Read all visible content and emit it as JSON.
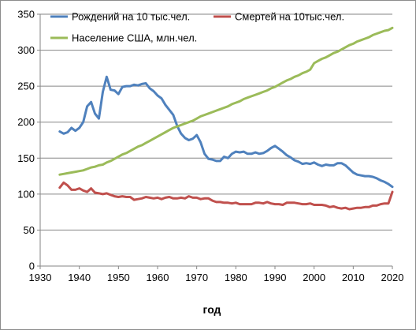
{
  "chart_data": {
    "type": "line",
    "xlabel": "год",
    "ylabel": "",
    "xlim": [
      1930,
      2020
    ],
    "ylim": [
      0,
      350
    ],
    "x_ticks": [
      1930,
      1940,
      1950,
      1960,
      1970,
      1980,
      1990,
      2000,
      2010,
      2020
    ],
    "y_ticks": [
      0,
      50,
      100,
      150,
      200,
      250,
      300,
      350
    ],
    "grid": "horizontal",
    "legend_position": "top-left",
    "series": [
      {
        "name": "Рождений на 10 тыс.чел.",
        "color": "#4f81bd",
        "points": [
          [
            1935,
            187
          ],
          [
            1936,
            184
          ],
          [
            1937,
            186
          ],
          [
            1938,
            192
          ],
          [
            1939,
            188
          ],
          [
            1940,
            192
          ],
          [
            1941,
            200
          ],
          [
            1942,
            222
          ],
          [
            1943,
            228
          ],
          [
            1944,
            212
          ],
          [
            1945,
            205
          ],
          [
            1946,
            242
          ],
          [
            1947,
            263
          ],
          [
            1948,
            245
          ],
          [
            1949,
            244
          ],
          [
            1950,
            239
          ],
          [
            1951,
            249
          ],
          [
            1952,
            250
          ],
          [
            1953,
            250
          ],
          [
            1954,
            252
          ],
          [
            1955,
            251
          ],
          [
            1956,
            253
          ],
          [
            1957,
            254
          ],
          [
            1958,
            247
          ],
          [
            1959,
            243
          ],
          [
            1960,
            237
          ],
          [
            1961,
            233
          ],
          [
            1962,
            224
          ],
          [
            1963,
            217
          ],
          [
            1964,
            210
          ],
          [
            1965,
            195
          ],
          [
            1966,
            184
          ],
          [
            1967,
            178
          ],
          [
            1968,
            175
          ],
          [
            1969,
            177
          ],
          [
            1970,
            182
          ],
          [
            1971,
            172
          ],
          [
            1972,
            156
          ],
          [
            1973,
            149
          ],
          [
            1974,
            148
          ],
          [
            1975,
            146
          ],
          [
            1976,
            146
          ],
          [
            1977,
            152
          ],
          [
            1978,
            150
          ],
          [
            1979,
            156
          ],
          [
            1980,
            159
          ],
          [
            1981,
            158
          ],
          [
            1982,
            159
          ],
          [
            1983,
            156
          ],
          [
            1984,
            156
          ],
          [
            1985,
            158
          ],
          [
            1986,
            156
          ],
          [
            1987,
            157
          ],
          [
            1988,
            160
          ],
          [
            1989,
            164
          ],
          [
            1990,
            167
          ],
          [
            1991,
            163
          ],
          [
            1992,
            159
          ],
          [
            1993,
            154
          ],
          [
            1994,
            151
          ],
          [
            1995,
            147
          ],
          [
            1996,
            145
          ],
          [
            1997,
            142
          ],
          [
            1998,
            143
          ],
          [
            1999,
            142
          ],
          [
            2000,
            144
          ],
          [
            2001,
            141
          ],
          [
            2002,
            139
          ],
          [
            2003,
            141
          ],
          [
            2004,
            140
          ],
          [
            2005,
            140
          ],
          [
            2006,
            143
          ],
          [
            2007,
            143
          ],
          [
            2008,
            140
          ],
          [
            2009,
            135
          ],
          [
            2010,
            130
          ],
          [
            2011,
            127
          ],
          [
            2012,
            126
          ],
          [
            2013,
            125
          ],
          [
            2014,
            125
          ],
          [
            2015,
            124
          ],
          [
            2016,
            122
          ],
          [
            2017,
            119
          ],
          [
            2018,
            117
          ],
          [
            2019,
            114
          ],
          [
            2020,
            110
          ]
        ]
      },
      {
        "name": "Смертей на 10тыс.чел.",
        "color": "#c0504d",
        "points": [
          [
            1935,
            109
          ],
          [
            1936,
            116
          ],
          [
            1937,
            112
          ],
          [
            1938,
            106
          ],
          [
            1939,
            106
          ],
          [
            1940,
            108
          ],
          [
            1941,
            105
          ],
          [
            1942,
            103
          ],
          [
            1943,
            108
          ],
          [
            1944,
            102
          ],
          [
            1945,
            101
          ],
          [
            1946,
            100
          ],
          [
            1947,
            101
          ],
          [
            1948,
            99
          ],
          [
            1949,
            97
          ],
          [
            1950,
            96
          ],
          [
            1951,
            97
          ],
          [
            1952,
            96
          ],
          [
            1953,
            96
          ],
          [
            1954,
            92
          ],
          [
            1955,
            93
          ],
          [
            1956,
            94
          ],
          [
            1957,
            96
          ],
          [
            1958,
            95
          ],
          [
            1959,
            94
          ],
          [
            1960,
            95
          ],
          [
            1961,
            93
          ],
          [
            1962,
            95
          ],
          [
            1963,
            96
          ],
          [
            1964,
            94
          ],
          [
            1965,
            94
          ],
          [
            1966,
            95
          ],
          [
            1967,
            94
          ],
          [
            1968,
            97
          ],
          [
            1969,
            95
          ],
          [
            1970,
            95
          ],
          [
            1971,
            93
          ],
          [
            1972,
            94
          ],
          [
            1973,
            94
          ],
          [
            1974,
            91
          ],
          [
            1975,
            89
          ],
          [
            1976,
            89
          ],
          [
            1977,
            88
          ],
          [
            1978,
            88
          ],
          [
            1979,
            87
          ],
          [
            1980,
            88
          ],
          [
            1981,
            86
          ],
          [
            1982,
            86
          ],
          [
            1983,
            86
          ],
          [
            1984,
            86
          ],
          [
            1985,
            88
          ],
          [
            1986,
            88
          ],
          [
            1987,
            87
          ],
          [
            1988,
            89
          ],
          [
            1989,
            87
          ],
          [
            1990,
            86
          ],
          [
            1991,
            86
          ],
          [
            1992,
            85
          ],
          [
            1993,
            88
          ],
          [
            1994,
            88
          ],
          [
            1995,
            88
          ],
          [
            1996,
            87
          ],
          [
            1997,
            86
          ],
          [
            1998,
            86
          ],
          [
            1999,
            87
          ],
          [
            2000,
            85
          ],
          [
            2001,
            85
          ],
          [
            2002,
            85
          ],
          [
            2003,
            84
          ],
          [
            2004,
            82
          ],
          [
            2005,
            83
          ],
          [
            2006,
            81
          ],
          [
            2007,
            80
          ],
          [
            2008,
            81
          ],
          [
            2009,
            79
          ],
          [
            2010,
            80
          ],
          [
            2011,
            81
          ],
          [
            2012,
            81
          ],
          [
            2013,
            82
          ],
          [
            2014,
            82
          ],
          [
            2015,
            84
          ],
          [
            2016,
            84
          ],
          [
            2017,
            86
          ],
          [
            2018,
            87
          ],
          [
            2019,
            87
          ],
          [
            2020,
            103
          ]
        ]
      },
      {
        "name": "Население США, млн.чел.",
        "color": "#9bbb59",
        "points": [
          [
            1935,
            127
          ],
          [
            1936,
            128
          ],
          [
            1937,
            129
          ],
          [
            1938,
            130
          ],
          [
            1939,
            131
          ],
          [
            1940,
            132
          ],
          [
            1941,
            133
          ],
          [
            1942,
            135
          ],
          [
            1943,
            137
          ],
          [
            1944,
            138
          ],
          [
            1945,
            140
          ],
          [
            1946,
            141
          ],
          [
            1947,
            144
          ],
          [
            1948,
            146
          ],
          [
            1949,
            149
          ],
          [
            1950,
            152
          ],
          [
            1951,
            155
          ],
          [
            1952,
            157
          ],
          [
            1953,
            160
          ],
          [
            1954,
            163
          ],
          [
            1955,
            166
          ],
          [
            1956,
            168
          ],
          [
            1957,
            171
          ],
          [
            1958,
            174
          ],
          [
            1959,
            177
          ],
          [
            1960,
            180
          ],
          [
            1961,
            183
          ],
          [
            1962,
            186
          ],
          [
            1963,
            189
          ],
          [
            1964,
            192
          ],
          [
            1965,
            194
          ],
          [
            1966,
            196
          ],
          [
            1967,
            198
          ],
          [
            1968,
            200
          ],
          [
            1969,
            202
          ],
          [
            1970,
            205
          ],
          [
            1971,
            208
          ],
          [
            1972,
            210
          ],
          [
            1973,
            212
          ],
          [
            1974,
            214
          ],
          [
            1975,
            216
          ],
          [
            1976,
            218
          ],
          [
            1977,
            220
          ],
          [
            1978,
            222
          ],
          [
            1979,
            225
          ],
          [
            1980,
            227
          ],
          [
            1981,
            229
          ],
          [
            1982,
            232
          ],
          [
            1983,
            234
          ],
          [
            1984,
            236
          ],
          [
            1985,
            238
          ],
          [
            1986,
            240
          ],
          [
            1987,
            242
          ],
          [
            1988,
            244
          ],
          [
            1989,
            247
          ],
          [
            1990,
            249
          ],
          [
            1991,
            252
          ],
          [
            1992,
            255
          ],
          [
            1993,
            258
          ],
          [
            1994,
            260
          ],
          [
            1995,
            263
          ],
          [
            1996,
            265
          ],
          [
            1997,
            268
          ],
          [
            1998,
            270
          ],
          [
            1999,
            273
          ],
          [
            2000,
            282
          ],
          [
            2001,
            285
          ],
          [
            2002,
            288
          ],
          [
            2003,
            290
          ],
          [
            2004,
            293
          ],
          [
            2005,
            296
          ],
          [
            2006,
            298
          ],
          [
            2007,
            301
          ],
          [
            2008,
            304
          ],
          [
            2009,
            307
          ],
          [
            2010,
            309
          ],
          [
            2011,
            312
          ],
          [
            2012,
            314
          ],
          [
            2013,
            316
          ],
          [
            2014,
            318
          ],
          [
            2015,
            321
          ],
          [
            2016,
            323
          ],
          [
            2017,
            325
          ],
          [
            2018,
            327
          ],
          [
            2019,
            328
          ],
          [
            2020,
            331
          ]
        ]
      }
    ]
  }
}
